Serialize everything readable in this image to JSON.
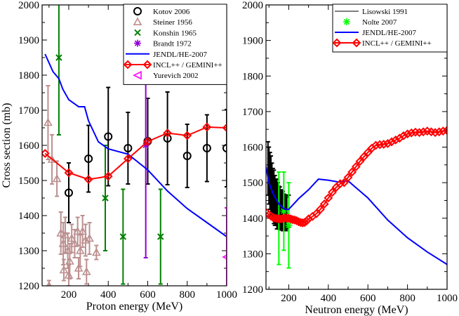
{
  "chart_data": [
    {
      "type": "scatter",
      "panel": "left",
      "xlabel": "Proton energy (MeV)",
      "ylabel": "Cross section (mb)",
      "xlim": [
        65,
        1000
      ],
      "ylim": [
        1200,
        2000
      ],
      "xticks": [
        200,
        400,
        600,
        800,
        1000
      ],
      "yticks": [
        1200,
        1300,
        1400,
        1500,
        1600,
        1700,
        1800,
        1900,
        2000
      ],
      "legend_position": "top-right",
      "series": [
        {
          "name": "Kotov 2006",
          "style": "marker",
          "marker": "circle",
          "color": "#000000",
          "legend": true,
          "points": [
            {
              "x": 200,
              "y": 1465,
              "err": 85
            },
            {
              "x": 300,
              "y": 1562,
              "err": 95
            },
            {
              "x": 400,
              "y": 1625,
              "err": 140
            },
            {
              "x": 500,
              "y": 1592,
              "err": 102
            },
            {
              "x": 600,
              "y": 1612,
              "err": 122
            },
            {
              "x": 700,
              "y": 1620,
              "err": 132
            },
            {
              "x": 800,
              "y": 1570,
              "err": 90
            },
            {
              "x": 900,
              "y": 1592,
              "err": 95
            },
            {
              "x": 1000,
              "y": 1592,
              "err": 110
            }
          ]
        },
        {
          "name": "Steiner 1956",
          "style": "marker",
          "marker": "triangle-up",
          "color": "#bc8f8f",
          "legend": true,
          "points": [
            {
              "x": 95,
              "y": 1665,
              "err": 105
            },
            {
              "x": 115,
              "y": 1560,
              "err": 70
            },
            {
              "x": 140,
              "y": 1505,
              "err": 50
            },
            {
              "x": 160,
              "y": 1350,
              "err": 60
            },
            {
              "x": 172,
              "y": 1320,
              "err": 60
            },
            {
              "x": 182,
              "y": 1345,
              "err": 50
            },
            {
              "x": 195,
              "y": 1300,
              "err": 50
            },
            {
              "x": 205,
              "y": 1270,
              "err": 50
            },
            {
              "x": 215,
              "y": 1335,
              "err": 40
            },
            {
              "x": 230,
              "y": 1320,
              "err": 40
            },
            {
              "x": 245,
              "y": 1355,
              "err": 40
            },
            {
              "x": 258,
              "y": 1300,
              "err": 45
            },
            {
              "x": 270,
              "y": 1355,
              "err": 45
            },
            {
              "x": 285,
              "y": 1330,
              "err": 45
            },
            {
              "x": 305,
              "y": 1335,
              "err": 45
            },
            {
              "x": 340,
              "y": 1295,
              "err": 20
            },
            {
              "x": 100,
              "y": 1200,
              "err": 15
            },
            {
              "x": 175,
              "y": 1245,
              "err": 30
            },
            {
              "x": 200,
              "y": 1230,
              "err": 30
            },
            {
              "x": 250,
              "y": 1250,
              "err": 30
            },
            {
              "x": 290,
              "y": 1240,
              "err": 35
            }
          ]
        },
        {
          "name": "Konshin 1965",
          "style": "marker",
          "marker": "x",
          "color": "#008000",
          "legend": true,
          "points": [
            {
              "x": 150,
              "y": 1850,
              "err": 220
            },
            {
              "x": 385,
              "y": 1450,
              "err": 150
            },
            {
              "x": 475,
              "y": 1340,
              "err": 135
            },
            {
              "x": 665,
              "y": 1340,
              "err": 135
            }
          ]
        },
        {
          "name": "Brandt 1972",
          "style": "marker",
          "marker": "asterisk",
          "color": "#9400d3",
          "legend": true,
          "points": [
            {
              "x": 590,
              "y": 1600,
              "err": 320
            }
          ]
        },
        {
          "name": "JENDL/HE-2007",
          "style": "line",
          "color": "#0000ff",
          "legend": true,
          "x": [
            80,
            120,
            150,
            170,
            200,
            250,
            280,
            300,
            350,
            400,
            500,
            600,
            700,
            800,
            900,
            1000
          ],
          "y": [
            1860,
            1810,
            1790,
            1760,
            1730,
            1710,
            1710,
            1670,
            1610,
            1590,
            1575,
            1530,
            1470,
            1420,
            1380,
            1340
          ]
        },
        {
          "name": "INCL++ / GEMINI++",
          "style": "line+marker",
          "marker": "diamond",
          "color": "#ff0000",
          "legend": true,
          "x": [
            80,
            200,
            300,
            400,
            500,
            600,
            700,
            800,
            900,
            1000
          ],
          "y": [
            1577,
            1522,
            1503,
            1512,
            1562,
            1611,
            1635,
            1628,
            1652,
            1650
          ]
        },
        {
          "name": "Yurevich 2002",
          "style": "marker",
          "marker": "triangle-left",
          "color": "#ff00ff",
          "legend": true,
          "points": [
            {
              "x": 1000,
              "y": 1282,
              "err": 140
            }
          ]
        }
      ]
    },
    {
      "type": "scatter",
      "panel": "right",
      "xlabel": "Neutron energy (MeV)",
      "ylabel": "",
      "xlim": [
        85,
        1000
      ],
      "ylim": [
        1200,
        2000
      ],
      "xticks": [
        200,
        400,
        600,
        800,
        1000
      ],
      "yticks": [
        1200,
        1300,
        1400,
        1500,
        1600,
        1700,
        1800,
        1900,
        2000
      ],
      "legend_position": "top-right",
      "series": [
        {
          "name": "Lisowski 1991",
          "style": "errorbars",
          "color": "#000000",
          "legend": true,
          "points": [
            {
              "x": 95,
              "y": 1540,
              "err": 75
            },
            {
              "x": 100,
              "y": 1520,
              "err": 80
            },
            {
              "x": 105,
              "y": 1505,
              "err": 80
            },
            {
              "x": 110,
              "y": 1490,
              "err": 85
            },
            {
              "x": 115,
              "y": 1480,
              "err": 75
            },
            {
              "x": 120,
              "y": 1470,
              "err": 70
            },
            {
              "x": 125,
              "y": 1460,
              "err": 75
            },
            {
              "x": 130,
              "y": 1450,
              "err": 70
            },
            {
              "x": 135,
              "y": 1445,
              "err": 65
            },
            {
              "x": 140,
              "y": 1440,
              "err": 70
            },
            {
              "x": 145,
              "y": 1435,
              "err": 65
            },
            {
              "x": 150,
              "y": 1430,
              "err": 60
            },
            {
              "x": 155,
              "y": 1428,
              "err": 60
            },
            {
              "x": 160,
              "y": 1425,
              "err": 55
            },
            {
              "x": 165,
              "y": 1422,
              "err": 55
            },
            {
              "x": 170,
              "y": 1420,
              "err": 55
            },
            {
              "x": 175,
              "y": 1418,
              "err": 50
            },
            {
              "x": 180,
              "y": 1416,
              "err": 50
            },
            {
              "x": 185,
              "y": 1415,
              "err": 50
            },
            {
              "x": 190,
              "y": 1415,
              "err": 45
            },
            {
              "x": 200,
              "y": 1420,
              "err": 45
            }
          ]
        },
        {
          "name": "Nolte 2007",
          "style": "marker",
          "marker": "asterisk",
          "color": "#00ff00",
          "legend": true,
          "points": [
            {
              "x": 150,
              "y": 1400,
              "err": 130
            },
            {
              "x": 175,
              "y": 1420,
              "err": 110
            },
            {
              "x": 200,
              "y": 1380,
              "err": 120
            }
          ]
        },
        {
          "name": "JENDL/HE-2007",
          "style": "line",
          "color": "#0000ff",
          "legend": true,
          "x": [
            85,
            100,
            120,
            150,
            180,
            200,
            250,
            300,
            350,
            400,
            450,
            500,
            600,
            700,
            800,
            900,
            1000
          ],
          "y": [
            1545,
            1500,
            1470,
            1440,
            1425,
            1425,
            1455,
            1480,
            1510,
            1507,
            1502,
            1505,
            1457,
            1395,
            1345,
            1305,
            1270
          ]
        },
        {
          "name": "INCL++ / GEMINI++",
          "style": "line+marker",
          "marker": "diamond",
          "color": "#ff0000",
          "legend": true,
          "x": [
            90,
            100,
            110,
            120,
            130,
            140,
            150,
            160,
            170,
            180,
            190,
            200,
            210,
            220,
            230,
            240,
            250,
            260,
            270,
            280,
            290,
            300,
            320,
            340,
            360,
            380,
            400,
            420,
            440,
            460,
            480,
            500,
            520,
            540,
            560,
            580,
            600,
            620,
            640,
            660,
            680,
            700,
            720,
            740,
            760,
            780,
            800,
            820,
            840,
            860,
            880,
            900,
            920,
            940,
            960,
            980,
            1000
          ],
          "y": [
            1415,
            1410,
            1406,
            1402,
            1400,
            1399,
            1398,
            1398,
            1399,
            1400,
            1400,
            1400,
            1398,
            1396,
            1395,
            1393,
            1390,
            1388,
            1387,
            1388,
            1392,
            1398,
            1405,
            1413,
            1425,
            1440,
            1457,
            1473,
            1487,
            1497,
            1500,
            1515,
            1530,
            1545,
            1560,
            1573,
            1585,
            1597,
            1605,
            1607,
            1608,
            1610,
            1615,
            1620,
            1625,
            1632,
            1637,
            1640,
            1642,
            1641,
            1643,
            1645,
            1643,
            1641,
            1643,
            1645,
            1647
          ]
        }
      ]
    }
  ]
}
